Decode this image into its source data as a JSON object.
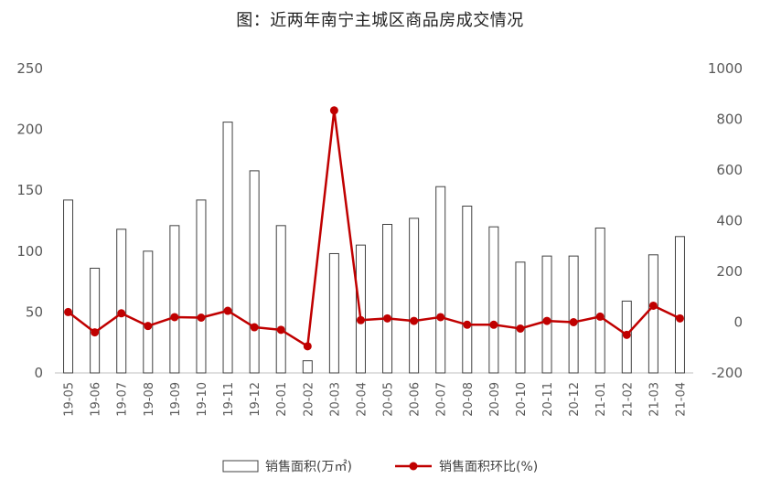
{
  "chart_data": {
    "type": "bar",
    "title": "图：近两年南宁主城区商品房成交情况",
    "categories": [
      "19-05",
      "19-06",
      "19-07",
      "19-08",
      "19-09",
      "19-10",
      "19-11",
      "19-12",
      "20-01",
      "20-02",
      "20-03",
      "20-04",
      "20-05",
      "20-06",
      "20-07",
      "20-08",
      "20-09",
      "20-10",
      "20-11",
      "20-12",
      "21-01",
      "21-02",
      "21-03",
      "21-04"
    ],
    "series": [
      {
        "name": "销售面积(万㎡)",
        "type": "bar",
        "axis": "left",
        "values": [
          142,
          86,
          118,
          100,
          121,
          142,
          206,
          166,
          121,
          10,
          98,
          105,
          122,
          127,
          153,
          137,
          120,
          91,
          96,
          96,
          119,
          59,
          97,
          112
        ]
      },
      {
        "name": "销售面积环比(%)",
        "type": "line",
        "axis": "right",
        "values": [
          40,
          -40,
          35,
          -15,
          20,
          18,
          45,
          -20,
          -30,
          -95,
          835,
          8,
          15,
          5,
          20,
          -10,
          -10,
          -25,
          5,
          0,
          22,
          -50,
          65,
          15
        ]
      }
    ],
    "y_left": {
      "min": 0,
      "max": 250,
      "ticks": [
        0,
        50,
        100,
        150,
        200,
        250
      ]
    },
    "y_right": {
      "min": -200,
      "max": 1000,
      "ticks": [
        -200,
        0,
        200,
        400,
        600,
        800,
        1000
      ]
    },
    "grid": false,
    "legend_position": "bottom",
    "colors": {
      "bar_fill": "#ffffff",
      "bar_stroke": "#404040",
      "line": "#c00000",
      "text": "#595959"
    }
  }
}
